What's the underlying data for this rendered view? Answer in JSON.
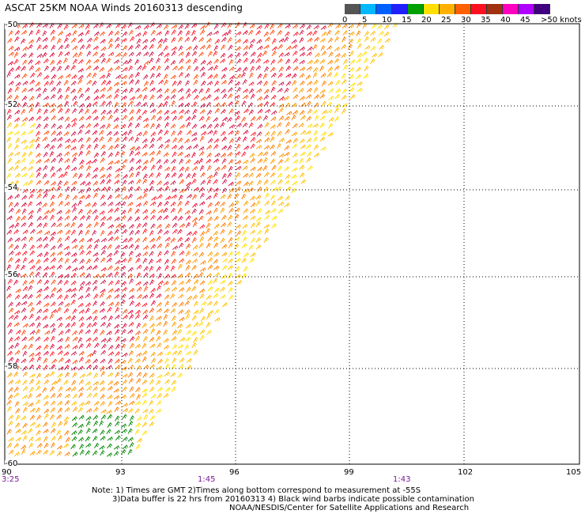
{
  "title": "ASCAT 25KM NOAA Winds 20160313 descending",
  "colorbar": {
    "colors": [
      "#555555",
      "#00b8ff",
      "#0060ff",
      "#2020ff",
      "#00a000",
      "#ffe000",
      "#ffb000",
      "#ff6000",
      "#ff1020",
      "#a03010",
      "#ff00c0",
      "#b000ff",
      "#400080"
    ],
    "labels": [
      "0",
      "5",
      "10",
      "15",
      "20",
      "25",
      "30",
      "35",
      "40",
      "45",
      ">50 knots"
    ]
  },
  "x_axis": {
    "ticks": [
      "90",
      "93",
      "96",
      "99",
      "102",
      "105"
    ]
  },
  "y_axis": {
    "ticks": [
      "-50",
      "-52",
      "-54",
      "-56",
      "-58",
      "-60"
    ]
  },
  "time_labels": [
    "3:25",
    "1:45",
    "1:43"
  ],
  "notes": {
    "line1": "Note: 1) Times are GMT 2)Times along bottom correspond to measurement at -55S",
    "line2": "3)Data buffer is 22 hrs from 20160313 4) Black wind barbs indicate possible contamination",
    "line3": "NOAA/NESDIS/Center for Satellite Applications and Research"
  }
}
